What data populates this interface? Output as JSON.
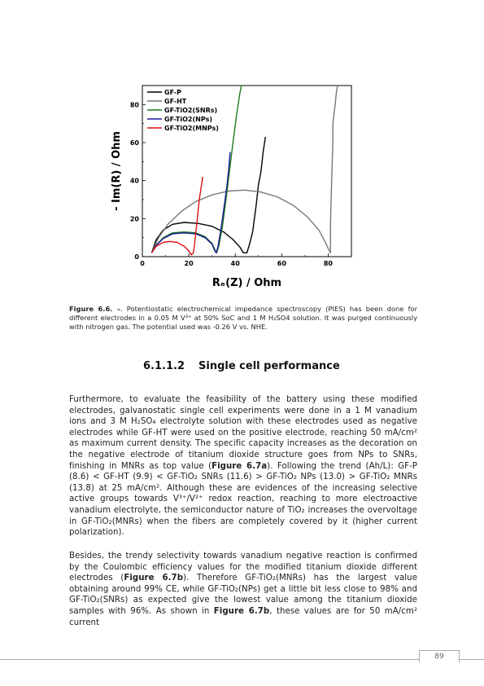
{
  "figure": {
    "xlabel": "Rₑ(Z) / Ohm",
    "ylabel": "- Im(R) / Ohm"
  },
  "chart_data": {
    "type": "line",
    "xlabel": "Rₑ(Z) / Ohm",
    "ylabel": "- Im(R) / Ohm",
    "xlim": [
      0,
      90
    ],
    "ylim": [
      0,
      90
    ],
    "xticks": [
      0,
      20,
      40,
      60,
      80
    ],
    "yticks": [
      0,
      20,
      40,
      60,
      80
    ],
    "grid": false,
    "legend_position": "top-left",
    "series": [
      {
        "name": "GF-P",
        "color": "#000000",
        "x": [
          4,
          6,
          9,
          13,
          18,
          24,
          30,
          35,
          39,
          42,
          43.5,
          45,
          46,
          47.5,
          49,
          50,
          51,
          52,
          53
        ],
        "y": [
          2,
          9,
          14,
          17,
          18,
          17.5,
          16,
          13,
          9,
          5,
          2,
          2,
          6,
          13,
          27,
          38,
          44,
          55,
          63
        ]
      },
      {
        "name": "GF-HT",
        "color": "#777777",
        "x": [
          4,
          7,
          11,
          17,
          23,
          30,
          37,
          44,
          51,
          58,
          65,
          71,
          76,
          79,
          80.5,
          81,
          81,
          81.5,
          82,
          82,
          83,
          83.5,
          84
        ],
        "y": [
          2,
          10,
          17,
          24,
          29,
          32.5,
          34.5,
          35,
          34,
          31.5,
          27,
          21,
          14,
          7,
          3,
          2,
          18,
          40,
          60,
          70,
          80,
          86,
          90
        ]
      },
      {
        "name": "GF-TiO2(SNRs)",
        "color": "#1b7a1b",
        "x": [
          4,
          6,
          9,
          13,
          18,
          23,
          27,
          30,
          31.5,
          32,
          33,
          34.5,
          36,
          37.5,
          39,
          40.5,
          42,
          43
        ],
        "y": [
          2,
          6,
          10,
          12.5,
          13,
          12.5,
          10.5,
          7,
          3,
          2,
          6,
          16,
          30,
          45,
          60,
          74,
          86,
          92
        ]
      },
      {
        "name": "GF-TiO2(NPs)",
        "color": "#1a1a99",
        "x": [
          4,
          6,
          9,
          13,
          18,
          23,
          27,
          30,
          31.2,
          31.8,
          32.5,
          33.5,
          34.5,
          35.5,
          36.5,
          37.2,
          37.8
        ],
        "y": [
          2,
          6,
          9.5,
          12,
          12.5,
          12,
          10,
          6.5,
          3,
          2,
          5,
          12,
          20,
          29,
          38,
          46,
          55
        ]
      },
      {
        "name": "GF-TiO2(MNPs)",
        "color": "#dd1111",
        "x": [
          4,
          6,
          9,
          12,
          15,
          18,
          20,
          21,
          22,
          22.5,
          23.5,
          24.5,
          25.5,
          26
        ],
        "y": [
          2,
          5.5,
          7.5,
          8,
          7.5,
          5.5,
          3,
          1,
          2,
          7,
          18,
          30,
          38,
          42
        ]
      }
    ]
  },
  "caption": {
    "label": "Figure 6.6. –",
    "text": ". Potentiostatic electrochemical impedance spectroscopy (PIES) has been done for different electrodes in a 0.05 M V³⁺ at 50% SoC and 1 M H₂SO4 solution. It was purged continuously with nitrogen gas. The potential used was -0.26 V vs. NHE."
  },
  "section": {
    "number": "6.1.1.2",
    "title": "Single cell performance"
  },
  "paragraph1": {
    "t1": "Furthermore, to evaluate the feasibility of the battery using these modified electrodes, galvanostatic single cell experiments were done in a 1 M vanadium ions and 3 M H₂SO₄ electrolyte solution with these electrodes used as negative electrodes while GF-HT were used on the positive electrode, reaching 50 mA/cm² as maximum current density. The specific capacity increases as the decoration on the negative electrode of titanium dioxide structure goes from NPs to SNRs, finishing in MNRs as top value (",
    "ref1": "Figure 6.7a",
    "t2": "). Following the trend (Ah/L): GF-P (8.6) < GF-HT (9.9) < GF-TiO₂ SNRs (11.6) > GF-TiO₂ NPs (13.0) > GF-TiO₂ MNRs (13.8) at 25 mA/cm². Although these are evidences of the increasing selective active groups towards V³⁺/V²⁺ redox reaction, reaching to more electroactive vanadium electrolyte, the semiconductor nature of TiO₂ increases the overvoltage in GF-TiO₂(MNRs) when the fibers are completely covered by it (higher current polarization)."
  },
  "paragraph2": {
    "t1": "Besides, the trendy selectivity towards vanadium negative reaction is confirmed by the Coulombic efficiency values for the modified titanium dioxide different electrodes (",
    "ref1": "Figure 6.7b",
    "t2": "). Therefore GF-TiO₂(MNRs) has the largest value obtaining around 99% CE, while GF-TiO₂(NPs) get a little bit less close to 98% and GF-TiO₂(SNRs) as expected give the lowest value among the titanium dioxide samples with 96%. As shown in ",
    "ref2": "Figure 6.7b",
    "t3": ", these values are for 50 mA/cm² current"
  },
  "page_number": "89"
}
